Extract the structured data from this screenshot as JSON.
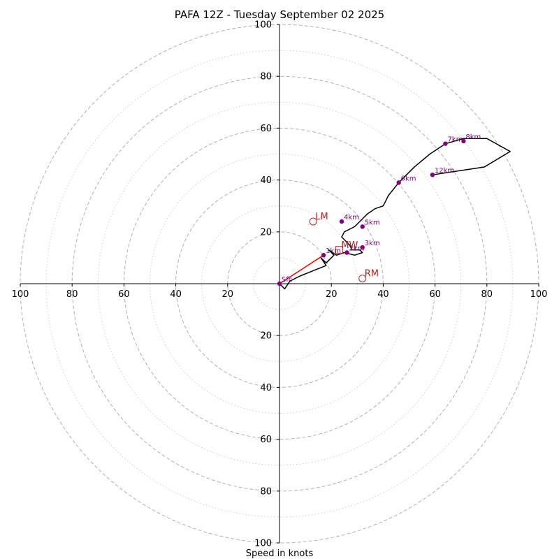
{
  "chart_data": {
    "type": "hodograph",
    "title": "PAFA 12Z - Tuesday September 02 2025",
    "xlabel": "Speed in knots",
    "max_speed": 100,
    "major_rings": [
      20,
      40,
      60,
      80,
      100
    ],
    "minor_rings": [
      10,
      30,
      50,
      70,
      90
    ],
    "tick_values": [
      20,
      40,
      60,
      80,
      100
    ],
    "series": [
      {
        "type": "hodograph-trace",
        "u": [
          0,
          2,
          4,
          8,
          13,
          18,
          16,
          18,
          21,
          19,
          22,
          25,
          29,
          32,
          31,
          28,
          27,
          24,
          25,
          29,
          32,
          34,
          37,
          40,
          42,
          46,
          52,
          58,
          64,
          71,
          80,
          89,
          79,
          59
        ],
        "v": [
          0,
          -2,
          1,
          3,
          5,
          7,
          10,
          8,
          11,
          13,
          11,
          12,
          11,
          12,
          13,
          13,
          15,
          18,
          20,
          22,
          25,
          27,
          29,
          30,
          34,
          39,
          45,
          50,
          54,
          56,
          56,
          51,
          45,
          42
        ]
      },
      {
        "type": "surface-1km-shear",
        "u": [
          0,
          17
        ],
        "v": [
          0,
          11
        ]
      }
    ],
    "height_points": [
      {
        "label": "Sfc",
        "u": 0,
        "v": 0
      },
      {
        "label": "1km",
        "u": 17,
        "v": 11
      },
      {
        "label": "2km",
        "u": 26,
        "v": 12
      },
      {
        "label": "3km",
        "u": 32,
        "v": 14
      },
      {
        "label": "4km",
        "u": 24,
        "v": 24
      },
      {
        "label": "5km",
        "u": 32,
        "v": 22
      },
      {
        "label": "6km",
        "u": 46,
        "v": 39
      },
      {
        "label": "7km",
        "u": 64,
        "v": 54
      },
      {
        "label": "8km",
        "u": 71,
        "v": 55
      },
      {
        "label": "12km",
        "u": 59,
        "v": 42
      }
    ],
    "motion_markers": [
      {
        "label": "LM",
        "u": 13,
        "v": 24,
        "shape": "circle"
      },
      {
        "label": "MW",
        "u": 23,
        "v": 13,
        "shape": "square"
      },
      {
        "label": "RM",
        "u": 32,
        "v": 2,
        "shape": "circle"
      }
    ],
    "colors": {
      "trace": "#000000",
      "shear": "#ff0000",
      "height_points": "#800080",
      "markers": "#b22222",
      "grid": "#b0b0b0",
      "minor_grid": "#cccccc"
    }
  }
}
